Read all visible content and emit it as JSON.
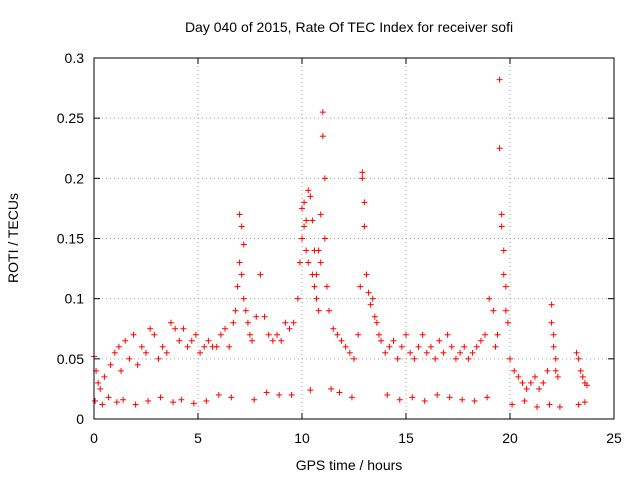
{
  "chart_data": {
    "type": "scatter",
    "title": "Day 040 of 2015, Rate Of TEC Index for receiver sofi",
    "xlabel": "GPS time / hours",
    "ylabel": "ROTI / TECUs",
    "xlim": [
      0,
      25
    ],
    "ylim": [
      0,
      0.3
    ],
    "xticks": [
      0,
      5,
      10,
      15,
      20,
      25
    ],
    "yticks": [
      0,
      0.05,
      0.1,
      0.15,
      0.2,
      0.25,
      0.3
    ],
    "xtick_labels": [
      "0",
      "5",
      "10",
      "15",
      "20",
      "25"
    ],
    "ytick_labels": [
      "0",
      "0.05",
      "0.1",
      "0.15",
      "0.2",
      "0.25",
      "0.3"
    ],
    "grid": true,
    "legend": "none",
    "marker": "plus",
    "color": "#ff0000",
    "series": [
      {
        "x": [
          0.0,
          0.1,
          0.2,
          0.3,
          0.5,
          0.8,
          1.0,
          1.2,
          1.3,
          1.5,
          1.7,
          1.9,
          2.1,
          2.3,
          2.5,
          2.7,
          2.9,
          3.1,
          3.3,
          3.5,
          3.7,
          3.9,
          4.1,
          4.3,
          4.5,
          4.7,
          4.9,
          5.1,
          5.3,
          5.5,
          5.7,
          5.9,
          6.1,
          6.3,
          6.5,
          6.7,
          6.8,
          6.9,
          7.0,
          7.0,
          7.1,
          7.1,
          7.2,
          7.2,
          7.3,
          7.4,
          7.5,
          7.6,
          7.8,
          8.0,
          8.2,
          8.4,
          8.6,
          8.8,
          9.0,
          9.2,
          9.4,
          9.6,
          9.8,
          9.9,
          10.0,
          10.0,
          10.1,
          10.1,
          10.2,
          10.2,
          10.3,
          10.3,
          10.4,
          10.5,
          10.5,
          10.6,
          10.6,
          10.7,
          10.7,
          10.8,
          10.8,
          10.9,
          10.9,
          11.0,
          11.0,
          11.1,
          11.1,
          11.2,
          11.3,
          11.5,
          11.7,
          11.9,
          12.1,
          12.3,
          12.5,
          12.7,
          12.8,
          12.9,
          12.9,
          13.0,
          13.0,
          13.1,
          13.2,
          13.3,
          13.4,
          13.5,
          13.6,
          13.7,
          13.8,
          14.0,
          14.2,
          14.4,
          14.6,
          14.8,
          15.0,
          15.2,
          15.4,
          15.6,
          15.8,
          16.0,
          16.2,
          16.4,
          16.6,
          16.8,
          17.0,
          17.2,
          17.4,
          17.6,
          17.8,
          18.0,
          18.2,
          18.4,
          18.6,
          18.8,
          19.0,
          19.2,
          19.3,
          19.4,
          19.5,
          19.5,
          19.6,
          19.6,
          19.7,
          19.7,
          19.8,
          19.8,
          19.9,
          20.0,
          20.2,
          20.4,
          20.6,
          20.8,
          21.0,
          21.2,
          21.4,
          21.6,
          21.8,
          22.0,
          22.0,
          22.1,
          22.1,
          22.2,
          22.2,
          22.3,
          23.2,
          23.3,
          23.4,
          23.5,
          23.6,
          23.7,
          0.05,
          0.4,
          0.7,
          1.1,
          1.4,
          2.0,
          2.6,
          3.2,
          3.8,
          4.2,
          4.8,
          5.4,
          6.0,
          6.6,
          7.7,
          8.3,
          8.9,
          9.5,
          10.4,
          11.4,
          11.8,
          12.4,
          14.1,
          14.7,
          15.3,
          15.9,
          16.5,
          17.1,
          17.7,
          18.3,
          18.9,
          20.1,
          20.7,
          21.3,
          21.9,
          22.4,
          23.3,
          23.6
        ],
        "y": [
          0.052,
          0.04,
          0.03,
          0.025,
          0.035,
          0.045,
          0.055,
          0.06,
          0.04,
          0.065,
          0.05,
          0.07,
          0.045,
          0.06,
          0.055,
          0.075,
          0.07,
          0.05,
          0.06,
          0.055,
          0.08,
          0.075,
          0.065,
          0.075,
          0.06,
          0.065,
          0.07,
          0.055,
          0.06,
          0.065,
          0.06,
          0.06,
          0.07,
          0.075,
          0.06,
          0.08,
          0.09,
          0.11,
          0.13,
          0.17,
          0.16,
          0.12,
          0.145,
          0.1,
          0.09,
          0.08,
          0.07,
          0.065,
          0.085,
          0.12,
          0.085,
          0.07,
          0.065,
          0.07,
          0.065,
          0.08,
          0.075,
          0.08,
          0.1,
          0.13,
          0.175,
          0.15,
          0.18,
          0.16,
          0.165,
          0.14,
          0.19,
          0.13,
          0.185,
          0.12,
          0.165,
          0.14,
          0.11,
          0.12,
          0.1,
          0.14,
          0.09,
          0.17,
          0.13,
          0.255,
          0.235,
          0.2,
          0.15,
          0.11,
          0.09,
          0.075,
          0.07,
          0.065,
          0.06,
          0.055,
          0.05,
          0.07,
          0.11,
          0.205,
          0.2,
          0.18,
          0.16,
          0.12,
          0.105,
          0.095,
          0.1,
          0.085,
          0.08,
          0.07,
          0.065,
          0.055,
          0.06,
          0.065,
          0.05,
          0.06,
          0.07,
          0.055,
          0.05,
          0.06,
          0.07,
          0.055,
          0.06,
          0.05,
          0.065,
          0.055,
          0.07,
          0.06,
          0.05,
          0.055,
          0.06,
          0.05,
          0.055,
          0.06,
          0.065,
          0.07,
          0.1,
          0.09,
          0.06,
          0.07,
          0.282,
          0.225,
          0.17,
          0.16,
          0.14,
          0.12,
          0.11,
          0.09,
          0.08,
          0.05,
          0.04,
          0.035,
          0.03,
          0.025,
          0.03,
          0.035,
          0.025,
          0.03,
          0.04,
          0.095,
          0.08,
          0.07,
          0.06,
          0.05,
          0.04,
          0.035,
          0.055,
          0.05,
          0.04,
          0.035,
          0.03,
          0.028,
          0.015,
          0.012,
          0.018,
          0.014,
          0.016,
          0.012,
          0.015,
          0.018,
          0.014,
          0.016,
          0.013,
          0.015,
          0.02,
          0.018,
          0.016,
          0.022,
          0.02,
          0.02,
          0.024,
          0.025,
          0.022,
          0.018,
          0.02,
          0.016,
          0.018,
          0.015,
          0.02,
          0.018,
          0.016,
          0.015,
          0.018,
          0.012,
          0.015,
          0.01,
          0.012,
          0.01,
          0.012,
          0.014
        ]
      }
    ]
  }
}
